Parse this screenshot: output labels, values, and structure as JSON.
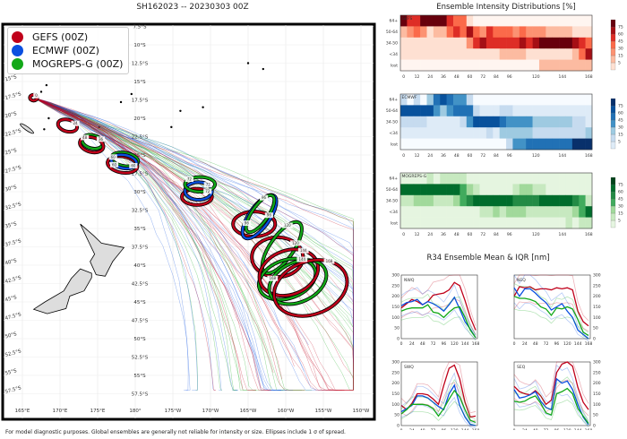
{
  "title": "SH162023 -- 20230303 00Z",
  "footnote": "For model diagnostic purposes. Global ensembles are generally not reliable for intensity or size. Ellipses include 1 σ of spread.",
  "colors": {
    "GEFS": "#c0001a",
    "ECMWF": "#0a4fe0",
    "MOGREPS-G": "#12a818"
  },
  "chart_data": [
    {
      "type": "map",
      "legend": [
        "GEFS (00Z)",
        "ECMWF (00Z)",
        "MOGREPS-G (00Z)"
      ],
      "legend_placement": "top-left",
      "lon_ticks": [
        "165°E",
        "170°E",
        "175°E",
        "180°",
        "175°W",
        "170°W",
        "165°W",
        "160°W",
        "155°W",
        "150°W"
      ],
      "lat_ticks": [
        "7.5°S",
        "10°S",
        "12.5°S",
        "15°S",
        "17.5°S",
        "20°S",
        "22.5°S",
        "25°S",
        "27.5°S",
        "30°S",
        "32.5°S",
        "35°S",
        "37.5°S",
        "40°S",
        "42.5°S",
        "45°S",
        "47.5°S",
        "50°S",
        "52.5°S",
        "55°S",
        "57.5°S"
      ],
      "ellipses": [
        {
          "model": "GEFS",
          "hour": "0",
          "lon": 166.5,
          "lat": 17.2,
          "rx": 0.5,
          "ry": 0.4,
          "angle": 0
        },
        {
          "model": "GEFS",
          "hour": "24",
          "lon": 171.0,
          "lat": 21.0,
          "rx": 1.3,
          "ry": 0.8,
          "angle": 15
        },
        {
          "model": "MOGREPS-G",
          "hour": "36",
          "lon": 174.3,
          "lat": 23.2,
          "rx": 1.4,
          "ry": 0.9,
          "angle": 15
        },
        {
          "model": "GEFS",
          "hour": "48",
          "lon": 174.2,
          "lat": 23.6,
          "rx": 1.6,
          "ry": 1.0,
          "angle": 15
        },
        {
          "model": "GEFS",
          "hour": "60",
          "lon": 178.3,
          "lat": 26.3,
          "rx": 2.0,
          "ry": 1.1,
          "angle": 10
        },
        {
          "model": "MOGREPS-G",
          "hour": "60",
          "lon": 178.6,
          "lat": 25.6,
          "rx": 1.8,
          "ry": 0.9,
          "angle": 10
        },
        {
          "model": "ECMWF",
          "hour": "60",
          "lon": 178.5,
          "lat": 25.9,
          "rx": 1.7,
          "ry": 0.9,
          "angle": 10
        },
        {
          "model": "GEFS",
          "hour": "72",
          "lon": 188.2,
          "lat": 30.7,
          "rx": 2.0,
          "ry": 1.1,
          "angle": 0
        },
        {
          "model": "ECMWF",
          "hour": "72",
          "lon": 188.4,
          "lat": 29.9,
          "rx": 1.8,
          "ry": 1.2,
          "angle": 0
        },
        {
          "model": "MOGREPS-G",
          "hour": "72",
          "lon": 188.6,
          "lat": 29.0,
          "rx": 2.0,
          "ry": 1.0,
          "angle": 0
        },
        {
          "model": "GEFS",
          "hour": "96",
          "lon": 195.8,
          "lat": 34.4,
          "rx": 2.8,
          "ry": 1.7,
          "angle": 0
        },
        {
          "model": "ECMWF",
          "hour": "96",
          "lon": 196.5,
          "lat": 33.4,
          "rx": 3.4,
          "ry": 1.4,
          "angle": -55
        },
        {
          "model": "MOGREPS-G",
          "hour": "96",
          "lon": 196.6,
          "lat": 33.0,
          "rx": 2.9,
          "ry": 1.1,
          "angle": -55
        },
        {
          "model": "GEFS",
          "hour": "120",
          "lon": 198.9,
          "lat": 38.9,
          "rx": 3.4,
          "ry": 2.7,
          "angle": 0
        },
        {
          "model": "MOGREPS-G",
          "hour": "120",
          "lon": 199.5,
          "lat": 37.6,
          "rx": 4.0,
          "ry": 1.6,
          "angle": -55
        },
        {
          "model": "MOGREPS-G",
          "hour": "144",
          "lon": 200.2,
          "lat": 41.9,
          "rx": 3.9,
          "ry": 2.6,
          "angle": -20
        },
        {
          "model": "GEFS",
          "hour": "144",
          "lon": 200.4,
          "lat": 41.0,
          "rx": 4.0,
          "ry": 3.0,
          "angle": -20
        },
        {
          "model": "MOGREPS-G",
          "hour": "168",
          "lon": 201.6,
          "lat": 42.3,
          "rx": 4.0,
          "ry": 2.7,
          "angle": -25
        },
        {
          "model": "GEFS",
          "hour": "168",
          "lon": 203.3,
          "lat": 43.1,
          "rx": 5.0,
          "ry": 3.6,
          "angle": -20
        }
      ]
    },
    {
      "type": "heatmap",
      "title": "Ensemble Intensity Distributions [%]",
      "x_ticks": [
        0,
        12,
        24,
        36,
        48,
        60,
        72,
        84,
        96,
        120,
        144,
        168
      ],
      "hours": [
        0,
        6,
        12,
        18,
        24,
        30,
        36,
        42,
        48,
        54,
        60,
        66,
        72,
        78,
        84,
        90,
        96,
        102,
        108,
        114,
        120,
        126,
        132,
        138,
        144,
        150,
        156,
        162,
        168
      ],
      "rows": [
        "64+",
        "50-64",
        "34-50",
        "<34",
        "lost"
      ],
      "colorbar_levels": [
        5,
        15,
        30,
        45,
        60,
        75
      ],
      "panels": [
        {
          "name": "GEFS",
          "cmap": "reds",
          "values": [
            [
              80,
              60,
              60,
              80,
              80,
              80,
              80,
              60,
              45,
              45,
              8,
              0,
              0,
              0,
              0,
              0,
              0,
              0,
              0,
              0,
              0,
              0,
              0,
              0,
              0,
              0,
              0,
              0,
              0
            ],
            [
              15,
              30,
              45,
              30,
              5,
              15,
              15,
              45,
              60,
              45,
              75,
              45,
              30,
              60,
              45,
              45,
              45,
              30,
              45,
              30,
              30,
              30,
              15,
              15,
              15,
              15,
              5,
              5,
              5
            ],
            [
              5,
              5,
              5,
              5,
              5,
              5,
              5,
              5,
              5,
              5,
              30,
              60,
              75,
              60,
              60,
              60,
              60,
              60,
              75,
              60,
              75,
              80,
              80,
              80,
              80,
              80,
              75,
              60,
              45
            ],
            [
              5,
              5,
              5,
              5,
              5,
              5,
              5,
              5,
              5,
              5,
              5,
              5,
              5,
              5,
              5,
              15,
              15,
              15,
              15,
              5,
              5,
              5,
              5,
              5,
              5,
              5,
              15,
              45,
              75
            ],
            [
              0,
              0,
              0,
              0,
              0,
              0,
              0,
              0,
              0,
              0,
              0,
              0,
              0,
              0,
              0,
              0,
              0,
              0,
              0,
              0,
              0,
              15,
              15,
              15,
              15,
              15,
              15,
              15,
              15
            ]
          ]
        },
        {
          "name": "ECMWF",
          "cmap": "blues",
          "values": [
            [
              15,
              0,
              15,
              0,
              30,
              60,
              75,
              60,
              45,
              45,
              15,
              0,
              0,
              0,
              0,
              0,
              0,
              0,
              0,
              0,
              0,
              0,
              0,
              0,
              0,
              0,
              0,
              0,
              0
            ],
            [
              75,
              75,
              75,
              75,
              75,
              45,
              30,
              45,
              60,
              60,
              60,
              15,
              5,
              5,
              5,
              15,
              15,
              5,
              5,
              5,
              5,
              5,
              5,
              5,
              5,
              5,
              5,
              5,
              5
            ],
            [
              15,
              15,
              15,
              15,
              5,
              5,
              5,
              5,
              5,
              15,
              45,
              75,
              75,
              75,
              75,
              60,
              45,
              45,
              45,
              45,
              30,
              30,
              30,
              30,
              30,
              30,
              15,
              15,
              5
            ],
            [
              5,
              5,
              5,
              5,
              5,
              5,
              5,
              5,
              5,
              5,
              5,
              5,
              5,
              15,
              5,
              30,
              30,
              30,
              30,
              30,
              15,
              15,
              15,
              15,
              15,
              15,
              15,
              15,
              30
            ],
            [
              0,
              0,
              0,
              0,
              0,
              0,
              0,
              0,
              0,
              0,
              0,
              0,
              0,
              0,
              0,
              0,
              15,
              45,
              45,
              60,
              60,
              60,
              60,
              60,
              60,
              60,
              80,
              80,
              80
            ]
          ]
        },
        {
          "name": "MOGREPS-G",
          "cmap": "greens",
          "values": [
            [
              5,
              5,
              5,
              5,
              15,
              5,
              15,
              15,
              15,
              15,
              5,
              5,
              5,
              5,
              5,
              5,
              5,
              5,
              5,
              5,
              5,
              5,
              5,
              5,
              5,
              5,
              5,
              5,
              5
            ],
            [
              75,
              75,
              75,
              75,
              75,
              75,
              75,
              75,
              75,
              45,
              30,
              15,
              5,
              5,
              5,
              5,
              5,
              15,
              30,
              30,
              15,
              15,
              5,
              5,
              5,
              5,
              5,
              5,
              5
            ],
            [
              15,
              15,
              30,
              30,
              30,
              15,
              15,
              15,
              30,
              45,
              60,
              75,
              75,
              75,
              75,
              75,
              75,
              60,
              60,
              60,
              60,
              75,
              75,
              75,
              75,
              75,
              60,
              45,
              15
            ],
            [
              5,
              5,
              5,
              5,
              5,
              5,
              5,
              5,
              5,
              5,
              5,
              5,
              15,
              15,
              30,
              15,
              30,
              30,
              30,
              15,
              15,
              15,
              15,
              15,
              15,
              15,
              30,
              45,
              75
            ],
            [
              5,
              5,
              5,
              5,
              5,
              5,
              5,
              5,
              5,
              5,
              5,
              5,
              5,
              5,
              5,
              5,
              5,
              5,
              5,
              5,
              5,
              5,
              5,
              5,
              5,
              15,
              5,
              15,
              15
            ]
          ]
        }
      ]
    },
    {
      "type": "line",
      "title": "R34 Ensemble Mean & IQR [nm]",
      "x": [
        0,
        12,
        24,
        36,
        48,
        60,
        72,
        84,
        96,
        108,
        120,
        132,
        144,
        156,
        168
      ],
      "x_ticks": [
        0,
        24,
        48,
        72,
        96,
        120,
        144,
        168
      ],
      "y_ticks": [
        0,
        50,
        100,
        150,
        200,
        250,
        300
      ],
      "ylim": [
        0,
        300
      ],
      "panels": [
        {
          "name": "NWQ",
          "series": [
            {
              "model": "GEFS",
              "values": [
                145,
                165,
                185,
                175,
                160,
                175,
                205,
                210,
                215,
                230,
                265,
                250,
                180,
                100,
                40
              ]
            },
            {
              "model": "ECMWF",
              "values": [
                155,
                170,
                175,
                185,
                160,
                175,
                165,
                150,
                130,
                160,
                195,
                140,
                80,
                45,
                5
              ]
            },
            {
              "model": "MOGREPS-G",
              "values": [
                130,
                140,
                145,
                145,
                145,
                160,
                125,
                120,
                100,
                125,
                145,
                150,
                100,
                40,
                5
              ]
            }
          ]
        },
        {
          "name": "NEQ",
          "series": [
            {
              "model": "GEFS",
              "values": [
                200,
                245,
                240,
                245,
                230,
                235,
                235,
                230,
                240,
                235,
                240,
                230,
                130,
                80,
                60
              ]
            },
            {
              "model": "ECMWF",
              "values": [
                240,
                200,
                235,
                235,
                215,
                190,
                170,
                135,
                150,
                165,
                130,
                100,
                40,
                20,
                0
              ]
            },
            {
              "model": "MOGREPS-G",
              "values": [
                200,
                190,
                190,
                185,
                175,
                150,
                140,
                110,
                145,
                140,
                150,
                140,
                90,
                30,
                15
              ]
            }
          ]
        },
        {
          "name": "SWQ",
          "series": [
            {
              "model": "GEFS",
              "values": [
                95,
                75,
                105,
                150,
                150,
                145,
                125,
                100,
                190,
                270,
                285,
                220,
                110,
                40,
                45
              ]
            },
            {
              "model": "ECMWF",
              "values": [
                65,
                80,
                95,
                140,
                140,
                130,
                110,
                90,
                75,
                150,
                190,
                95,
                40,
                5,
                0
              ]
            },
            {
              "model": "MOGREPS-G",
              "values": [
                55,
                75,
                100,
                100,
                100,
                95,
                80,
                45,
                80,
                125,
                165,
                135,
                75,
                25,
                15
              ]
            }
          ]
        },
        {
          "name": "SEQ",
          "series": [
            {
              "model": "GEFS",
              "values": [
                185,
                160,
                150,
                145,
                165,
                140,
                100,
                120,
                250,
                290,
                300,
                280,
                180,
                110,
                75
              ]
            },
            {
              "model": "ECMWF",
              "values": [
                170,
                130,
                135,
                145,
                160,
                115,
                85,
                75,
                220,
                200,
                210,
                170,
                100,
                40,
                5
              ]
            },
            {
              "model": "MOGREPS-G",
              "values": [
                115,
                110,
                115,
                130,
                140,
                105,
                60,
                50,
                150,
                160,
                175,
                150,
                80,
                45,
                10
              ]
            }
          ]
        }
      ]
    }
  ]
}
